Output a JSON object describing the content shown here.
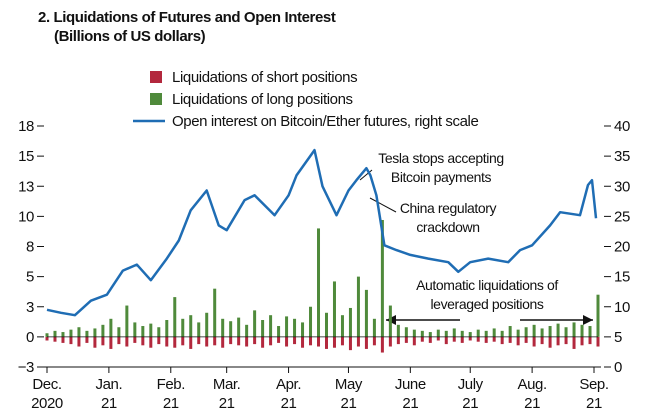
{
  "chart_data": {
    "type": "bar-line",
    "title": "2. Liquidations of Futures and Open Interest",
    "subtitle": "(Billions of US dollars)",
    "legend": "top",
    "xlim": [
      0,
      276
    ],
    "xticks": [
      {
        "value": 0,
        "label": "Dec.\n2020"
      },
      {
        "value": 31,
        "label": "Jan.\n21"
      },
      {
        "value": 62,
        "label": "Feb.\n21"
      },
      {
        "value": 90,
        "label": "Mar.\n21"
      },
      {
        "value": 121,
        "label": "Apr.\n21"
      },
      {
        "value": 151,
        "label": "May\n21"
      },
      {
        "value": 182,
        "label": "June\n21"
      },
      {
        "value": 212,
        "label": "July\n21"
      },
      {
        "value": 243,
        "label": "Aug.\n21"
      },
      {
        "value": 274,
        "label": "Sep.\n21"
      }
    ],
    "ylim": [
      -2.5,
      17.5
    ],
    "yticks": [
      {
        "value": -2.5,
        "label": "−3"
      },
      0,
      {
        "value": 2.5,
        "label": "3"
      },
      5,
      {
        "value": 7.5,
        "label": "8"
      },
      10,
      {
        "value": 12.5,
        "label": "13"
      },
      15,
      {
        "value": 17.5,
        "label": "18"
      }
    ],
    "y2lim": [
      0,
      40
    ],
    "y2ticks": [
      0,
      5,
      10,
      15,
      20,
      25,
      30,
      35,
      40
    ],
    "bar_x": [
      0,
      4,
      8,
      12,
      16,
      20,
      24,
      28,
      32,
      36,
      40,
      44,
      48,
      52,
      56,
      60,
      64,
      68,
      72,
      76,
      80,
      84,
      88,
      92,
      96,
      100,
      104,
      108,
      112,
      116,
      120,
      124,
      128,
      132,
      136,
      140,
      144,
      148,
      152,
      156,
      160,
      164,
      168,
      172,
      176,
      180,
      184,
      188,
      192,
      196,
      200,
      204,
      208,
      212,
      216,
      220,
      224,
      228,
      232,
      236,
      240,
      244,
      248,
      252,
      256,
      260,
      264,
      268,
      272,
      276
    ],
    "series": [
      {
        "name": "Liquidations of short positions",
        "type": "bar",
        "color": "#b3283d",
        "values": [
          -0.3,
          -0.4,
          -0.5,
          -0.6,
          -0.8,
          -0.5,
          -0.9,
          -0.7,
          -1.0,
          -0.6,
          -0.8,
          -0.5,
          -0.7,
          -0.9,
          -0.6,
          -0.8,
          -0.9,
          -0.7,
          -1.0,
          -0.6,
          -0.8,
          -0.7,
          -0.9,
          -0.6,
          -0.7,
          -0.8,
          -0.6,
          -0.9,
          -0.7,
          -0.5,
          -0.8,
          -0.6,
          -0.9,
          -0.7,
          -0.8,
          -1.0,
          -0.9,
          -0.7,
          -1.1,
          -0.8,
          -1.0,
          -0.7,
          -1.3,
          -0.8,
          -0.6,
          -0.5,
          -0.7,
          -0.4,
          -0.5,
          -0.3,
          -0.6,
          -0.4,
          -0.5,
          -0.3,
          -0.4,
          -0.5,
          -0.4,
          -0.6,
          -0.5,
          -0.7,
          -0.5,
          -0.8,
          -0.6,
          -0.9,
          -0.7,
          -0.6,
          -1.0,
          -0.7,
          -0.6,
          -0.8
        ]
      },
      {
        "name": "Liquidations of long positions",
        "type": "bar",
        "color": "#4f8a3b",
        "values": [
          0.3,
          0.5,
          0.4,
          0.6,
          0.8,
          0.5,
          0.7,
          1.0,
          1.5,
          0.8,
          2.6,
          1.2,
          0.9,
          1.1,
          0.8,
          1.4,
          3.3,
          1.5,
          1.8,
          1.2,
          2.0,
          4.0,
          1.5,
          1.3,
          1.6,
          1.0,
          2.2,
          1.4,
          1.8,
          0.9,
          1.7,
          1.5,
          1.2,
          2.5,
          9.0,
          2.0,
          4.6,
          1.8,
          2.4,
          5.0,
          3.9,
          1.5,
          9.7,
          2.6,
          1.0,
          0.8,
          0.6,
          0.5,
          0.4,
          0.6,
          0.5,
          0.7,
          0.5,
          0.4,
          0.6,
          0.5,
          0.7,
          0.5,
          0.9,
          0.6,
          0.8,
          1.0,
          0.7,
          0.9,
          1.1,
          0.8,
          1.2,
          1.0,
          0.9,
          3.5
        ]
      },
      {
        "name": "Open interest on Bitcoin/Ether futures, right scale",
        "type": "line",
        "axis": "y2",
        "color": "#1f6db4",
        "x": [
          0,
          7,
          14,
          22,
          30,
          38,
          45,
          52,
          60,
          66,
          72,
          80,
          86,
          90,
          99,
          104,
          114,
          121,
          125,
          134,
          138,
          145,
          151,
          155,
          160,
          162,
          165,
          169,
          175,
          182,
          191,
          201,
          206,
          212,
          221,
          231,
          237,
          243,
          252,
          257,
          267,
          271,
          273,
          275
        ],
        "values": [
          9.5,
          9,
          8.6,
          11,
          12,
          16,
          17,
          14.4,
          18,
          21,
          26,
          29.3,
          23.5,
          22.7,
          27.7,
          28.5,
          25.2,
          28.5,
          31.8,
          36,
          30,
          25.2,
          29.3,
          31,
          33,
          31.8,
          28.5,
          20.2,
          19.4,
          18.6,
          18,
          17.4,
          15.8,
          17.4,
          18,
          17.4,
          19.4,
          20.2,
          23.5,
          25.7,
          25.2,
          30.2,
          31,
          24.7
        ]
      }
    ],
    "annotations": [
      [
        "Tesla stops accepting",
        "Bitcoin payments"
      ],
      [
        "China regulatory",
        "crackdown"
      ],
      [
        "Automatic liquidations of",
        "leveraged positions"
      ]
    ]
  }
}
